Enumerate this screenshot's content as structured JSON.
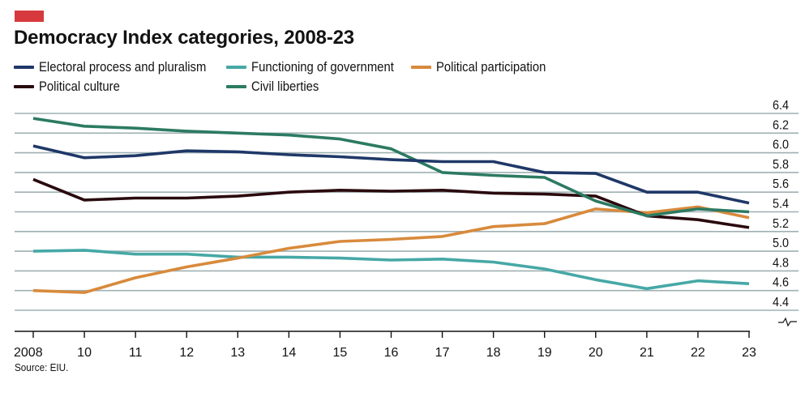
{
  "header": {
    "title": "Democracy Index categories, 2008-23",
    "tag_color": "#d63a3e"
  },
  "legend": [
    {
      "label": "Electoral process and pluralism",
      "color": "#1f3868"
    },
    {
      "label": "Functioning of government",
      "color": "#46a8a6"
    },
    {
      "label": "Political participation",
      "color": "#d88a3c"
    },
    {
      "label": "Political culture",
      "color": "#2a0a0e"
    },
    {
      "label": "Civil liberties",
      "color": "#2c7a62"
    }
  ],
  "footer": {
    "source": "Source: EIU."
  },
  "chart_data": {
    "type": "line",
    "title": "Democracy Index categories, 2008-23",
    "xlabel": "",
    "ylabel": "",
    "categories": [
      "2008",
      "10",
      "11",
      "12",
      "13",
      "14",
      "15",
      "16",
      "17",
      "18",
      "19",
      "20",
      "21",
      "22",
      "23"
    ],
    "ylim": [
      4.2,
      6.4
    ],
    "yticks": [
      "6.4",
      "6.2",
      "6.0",
      "5.8",
      "5.6",
      "5.4",
      "5.2",
      "5.0",
      "4.8",
      "4.6",
      "4.4"
    ],
    "ytick_values": [
      6.4,
      6.2,
      6.0,
      5.8,
      5.6,
      5.4,
      5.2,
      5.0,
      4.8,
      4.6,
      4.4
    ],
    "y_axis_position": "right",
    "y_axis_break": true,
    "grid": true,
    "legend_position": "top-left",
    "series": [
      {
        "name": "Electoral process and pluralism",
        "color": "#1f3868",
        "values": [
          6.07,
          5.95,
          5.97,
          6.02,
          6.01,
          5.98,
          5.96,
          5.93,
          5.91,
          5.91,
          5.8,
          5.79,
          5.6,
          5.6,
          5.49
        ]
      },
      {
        "name": "Functioning of government",
        "color": "#46a8a6",
        "values": [
          5.0,
          5.01,
          4.97,
          4.97,
          4.94,
          4.94,
          4.93,
          4.91,
          4.92,
          4.89,
          4.82,
          4.71,
          4.62,
          4.7,
          4.67
        ]
      },
      {
        "name": "Political participation",
        "color": "#d88a3c",
        "values": [
          4.6,
          4.58,
          4.73,
          4.84,
          4.93,
          5.03,
          5.1,
          5.12,
          5.15,
          5.25,
          5.28,
          5.43,
          5.39,
          5.45,
          5.34
        ]
      },
      {
        "name": "Political culture",
        "color": "#2a0a0e",
        "values": [
          5.73,
          5.52,
          5.54,
          5.54,
          5.56,
          5.6,
          5.62,
          5.61,
          5.62,
          5.59,
          5.58,
          5.56,
          5.36,
          5.32,
          5.24
        ]
      },
      {
        "name": "Civil liberties",
        "color": "#2c7a62",
        "values": [
          6.35,
          6.27,
          6.25,
          6.22,
          6.2,
          6.18,
          6.14,
          6.04,
          5.8,
          5.77,
          5.75,
          5.51,
          5.36,
          5.43,
          5.4
        ]
      }
    ],
    "source": "Source: EIU."
  }
}
